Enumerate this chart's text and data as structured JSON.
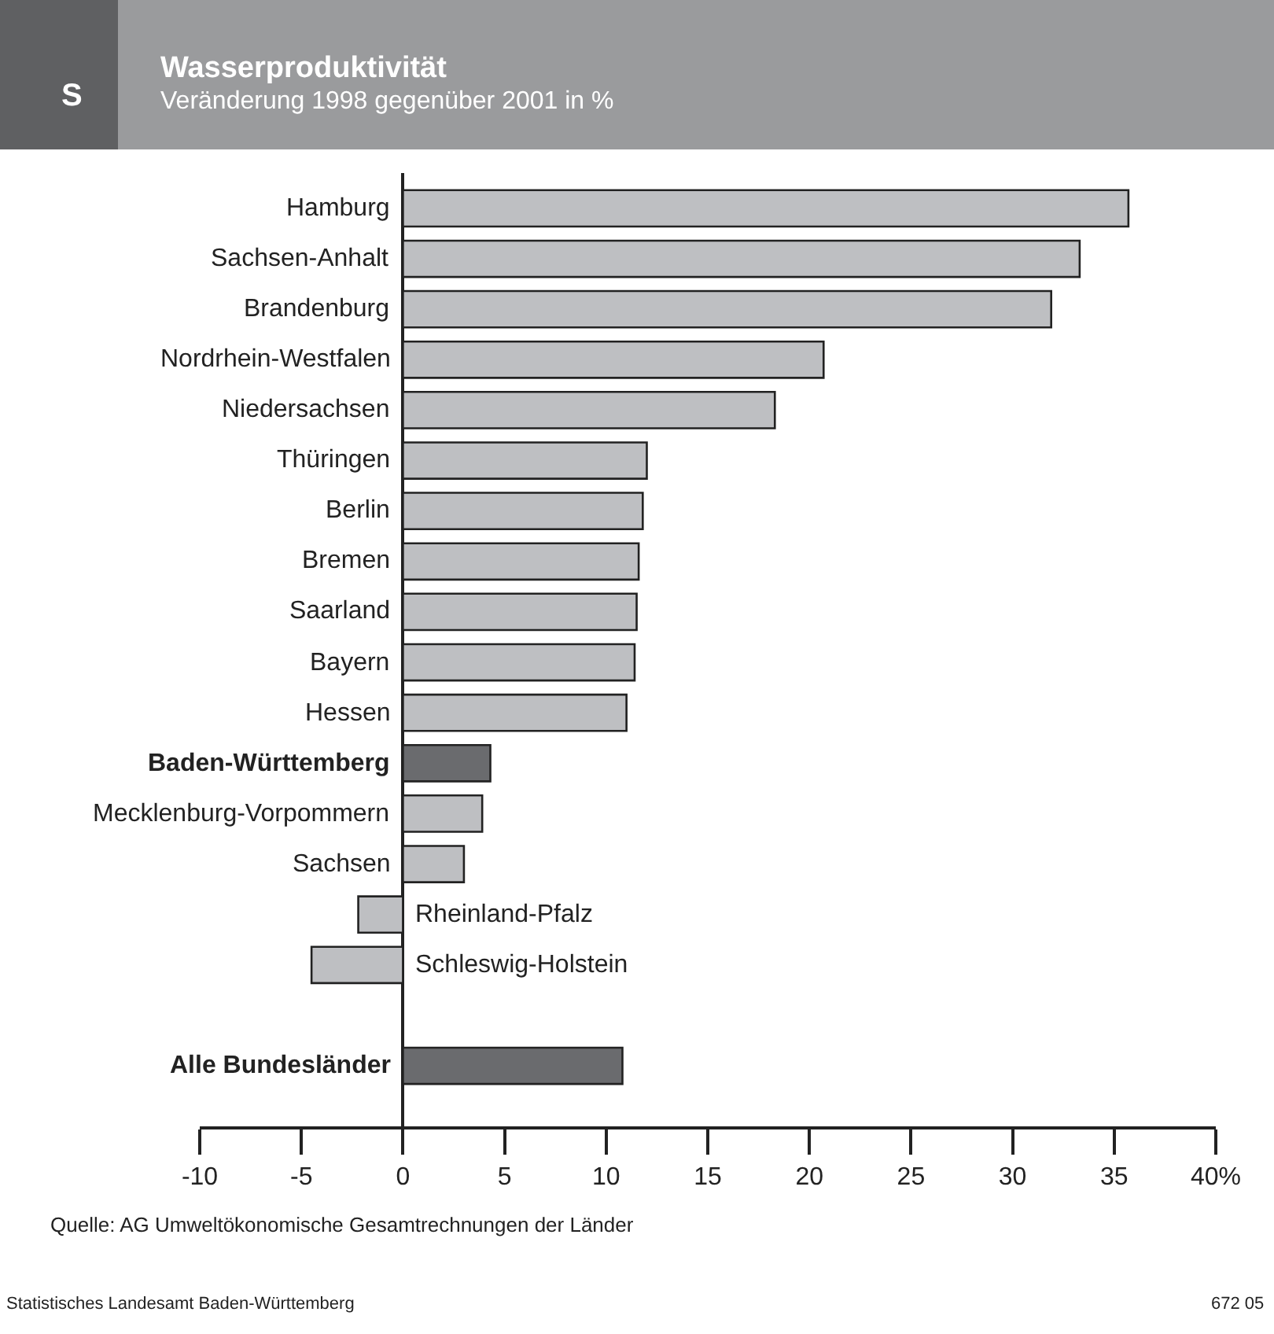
{
  "chart_data": {
    "type": "bar",
    "orientation": "horizontal",
    "title": "Wasserproduktivität",
    "subtitle": "Veränderung 1998 gegenüber 2001 in %",
    "categories": [
      "Hamburg",
      "Sachsen-Anhalt",
      "Brandenburg",
      "Nordrhein-Westfalen",
      "Niedersachsen",
      "Thüringen",
      "Berlin",
      "Bremen",
      "Saarland",
      "Bayern",
      "Hessen",
      "Baden-Württemberg",
      "Mecklenburg-Vorpommern",
      "Sachsen",
      "Rheinland-Pfalz",
      "Schleswig-Holstein",
      null,
      "Alle Bundesländer"
    ],
    "values": [
      35.7,
      33.3,
      31.9,
      20.7,
      18.3,
      12.0,
      11.8,
      11.6,
      11.5,
      11.4,
      11.0,
      4.3,
      3.9,
      3.0,
      -2.2,
      -4.5,
      null,
      10.8
    ],
    "colors": [
      "#bebfc2",
      "#bebfc2",
      "#bebfc2",
      "#bebfc2",
      "#bebfc2",
      "#bebfc2",
      "#bebfc2",
      "#bebfc2",
      "#bebfc2",
      "#bebfc2",
      "#bebfc2",
      "#6a6b6e",
      "#bebfc2",
      "#bebfc2",
      "#bebfc2",
      "#bebfc2",
      "#bebfc2",
      "#6a6b6e"
    ],
    "xlim": [
      -10,
      40
    ],
    "xticks": [
      -10,
      -5,
      0,
      5,
      10,
      15,
      20,
      25,
      30,
      35,
      {
        "value": 40,
        "label": "40%"
      }
    ],
    "annotations": [
      "S",
      "Quelle: AG Umweltökonomische Gesamtrechnungen der Länder",
      "Statistisches Landesamt Baden-Württemberg",
      "672 05"
    ]
  }
}
